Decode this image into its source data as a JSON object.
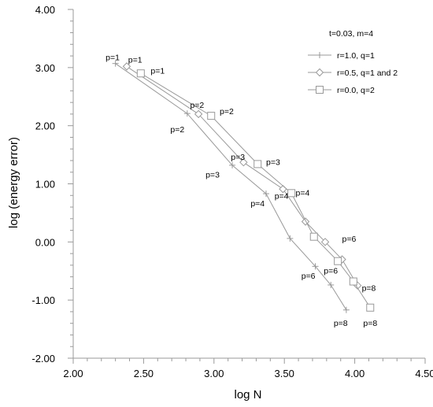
{
  "chart_data": {
    "type": "line",
    "title": "",
    "xlabel": "log N",
    "ylabel": "log (energy error)",
    "xlim": [
      2.0,
      4.5
    ],
    "ylim": [
      -2.0,
      4.0
    ],
    "x_ticks": [
      "2.00",
      "2.50",
      "3.00",
      "3.50",
      "4.00",
      "4.50"
    ],
    "y_ticks": [
      "4.00",
      "3.00",
      "2.00",
      "1.00",
      "0.00",
      "-1.00",
      "-2.00"
    ],
    "x_tick_values": [
      2.0,
      2.5,
      3.0,
      3.5,
      4.0,
      4.5
    ],
    "y_tick_values": [
      4.0,
      3.0,
      2.0,
      1.0,
      0.0,
      -1.0,
      -2.0
    ],
    "grid": false,
    "legend_title": "t=0.03, m=4",
    "legend_position": "top-right",
    "series": [
      {
        "name": "r=1.0, q=1",
        "marker": "plus",
        "color": "#999999",
        "x": [
          2.3,
          2.81,
          3.13,
          3.37,
          3.54,
          3.72,
          3.83,
          3.94
        ],
        "y": [
          3.07,
          2.21,
          1.32,
          0.83,
          0.06,
          -0.42,
          -0.74,
          -1.17
        ]
      },
      {
        "name": "r=0.5, q=1 and 2",
        "marker": "diamond",
        "color": "#999999",
        "x": [
          2.38,
          2.89,
          3.21,
          3.49,
          3.65,
          3.79,
          3.91,
          4.02
        ],
        "y": [
          3.02,
          2.2,
          1.37,
          0.91,
          0.35,
          0.0,
          -0.3,
          -0.75
        ]
      },
      {
        "name": "r=0.0, q=2",
        "marker": "square",
        "color": "#999999",
        "x": [
          2.48,
          2.98,
          3.31,
          3.55,
          3.71,
          3.88,
          3.99,
          4.11
        ],
        "y": [
          2.9,
          2.17,
          1.34,
          0.84,
          0.09,
          -0.33,
          -0.68,
          -1.13
        ]
      }
    ],
    "annotations": [
      {
        "text": "p=1",
        "x": 2.28,
        "y": 3.18
      },
      {
        "text": "p=1",
        "x": 2.44,
        "y": 3.14
      },
      {
        "text": "p=1",
        "x": 2.6,
        "y": 2.95
      },
      {
        "text": "p=2",
        "x": 2.74,
        "y": 1.94
      },
      {
        "text": "p=2",
        "x": 2.88,
        "y": 2.36
      },
      {
        "text": "p=2",
        "x": 3.09,
        "y": 2.25
      },
      {
        "text": "p=3",
        "x": 2.99,
        "y": 1.16
      },
      {
        "text": "p=3",
        "x": 3.17,
        "y": 1.47
      },
      {
        "text": "p=3",
        "x": 3.42,
        "y": 1.38
      },
      {
        "text": "p=4",
        "x": 3.31,
        "y": 0.67
      },
      {
        "text": "p=4",
        "x": 3.48,
        "y": 0.8
      },
      {
        "text": "p=4",
        "x": 3.63,
        "y": 0.85
      },
      {
        "text": "p=6",
        "x": 3.67,
        "y": -0.58
      },
      {
        "text": "p=6",
        "x": 3.83,
        "y": -0.49
      },
      {
        "text": "p=6",
        "x": 3.96,
        "y": 0.06
      },
      {
        "text": "p=8",
        "x": 3.9,
        "y": -1.39
      },
      {
        "text": "p=8",
        "x": 4.11,
        "y": -1.39
      },
      {
        "text": "p=8",
        "x": 4.1,
        "y": -0.79
      }
    ]
  }
}
